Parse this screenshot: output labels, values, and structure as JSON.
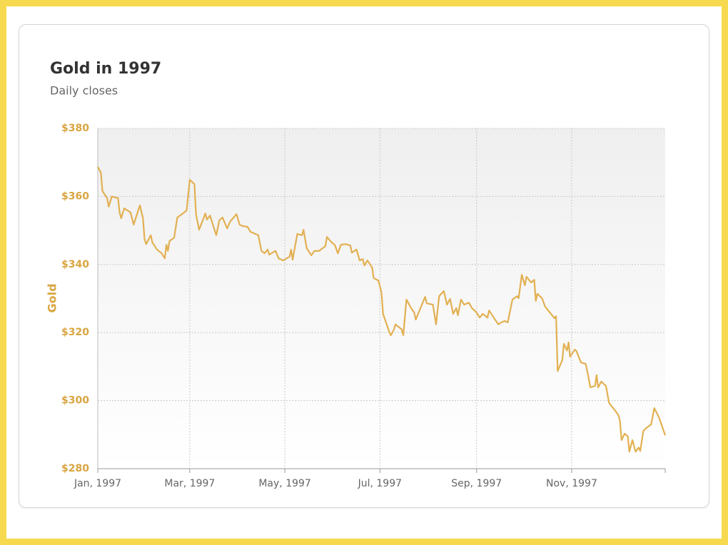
{
  "chart_data": {
    "type": "line",
    "title": "Gold in 1997",
    "subtitle": "Daily closes",
    "ylabel": "Gold",
    "x": [
      0,
      2,
      3,
      6,
      7,
      9,
      13,
      14,
      15,
      17,
      21,
      23,
      27,
      29,
      30,
      31,
      34,
      35,
      38,
      41,
      43,
      44,
      45,
      46,
      49,
      51,
      54,
      57,
      59,
      62,
      63,
      65,
      69,
      70,
      72,
      76,
      78,
      80,
      83,
      85,
      89,
      91,
      93,
      96,
      98,
      103,
      105,
      107,
      109,
      110,
      114,
      116,
      119,
      123,
      124,
      125,
      128,
      131,
      132,
      134,
      137,
      139,
      142,
      146,
      147,
      150,
      152,
      154,
      156,
      159,
      162,
      163,
      166,
      168,
      170,
      171,
      173,
      176,
      177,
      180,
      182,
      183,
      187,
      188,
      190,
      191,
      195,
      196,
      198,
      201,
      203,
      204,
      207,
      210,
      211,
      215,
      217,
      219,
      222,
      224,
      226,
      228,
      230,
      231,
      233,
      235,
      238,
      240,
      243,
      245,
      247,
      250,
      251,
      254,
      257,
      259,
      261,
      263,
      266,
      269,
      270,
      272,
      274,
      275,
      278,
      280,
      281,
      282,
      285,
      287,
      290,
      293,
      294,
      295,
      298,
      299,
      301,
      302,
      303,
      306,
      307,
      310,
      313,
      314,
      316,
      319,
      320,
      321,
      323,
      326,
      328,
      332,
      334,
      335,
      336,
      338,
      340,
      341,
      343,
      345,
      347,
      348,
      350,
      352,
      355,
      357,
      360,
      364
    ],
    "series": [
      {
        "name": "Gold",
        "color": "#e2b052",
        "values": [
          368.7,
          367,
          361.6,
          359.5,
          357,
          360,
          359.5,
          355.3,
          353.6,
          356.5,
          355.3,
          351.7,
          357.4,
          353.6,
          347.5,
          346,
          348.6,
          346.5,
          344.4,
          343.3,
          341.8,
          345.8,
          344,
          346.9,
          347.9,
          353.8,
          354.8,
          355.9,
          364.9,
          363.6,
          354.8,
          350.2,
          355,
          353.2,
          354.4,
          348.6,
          353,
          353.8,
          350.6,
          352.7,
          354.8,
          351.7,
          351.3,
          351.1,
          349.6,
          348.6,
          344,
          343.3,
          344.4,
          342.9,
          344,
          341.8,
          341.2,
          342.3,
          344.4,
          341.4,
          349,
          348.6,
          350.2,
          344.8,
          342.7,
          344,
          344,
          345.4,
          348.1,
          346.5,
          345.8,
          343.3,
          345.8,
          346,
          345.6,
          343.5,
          344.4,
          341.2,
          341.6,
          339.7,
          341.2,
          339.1,
          336,
          335.3,
          331.8,
          325.5,
          320.2,
          319.2,
          320.9,
          322.4,
          320.9,
          319.2,
          329.7,
          327.2,
          325.9,
          323.8,
          327.2,
          330.5,
          328.6,
          328.2,
          322.4,
          330.7,
          332.2,
          328.2,
          329.9,
          325.5,
          327.2,
          325.1,
          329.7,
          328.2,
          328.8,
          327.2,
          325.9,
          324.4,
          325.5,
          324.4,
          326.5,
          324.4,
          322.4,
          323,
          323.4,
          323,
          329.7,
          330.7,
          330.1,
          337,
          333.9,
          336.4,
          334.7,
          335.5,
          329.3,
          331.4,
          330.1,
          327.6,
          325.9,
          324.2,
          324.8,
          308.7,
          311.9,
          316.7,
          314.7,
          317.1,
          312.9,
          315,
          314.6,
          311.2,
          310.8,
          308.7,
          303.9,
          304.3,
          307.5,
          303.9,
          305.6,
          304.3,
          299.3,
          297,
          295.7,
          294,
          288.4,
          290.3,
          289.5,
          285,
          288.4,
          285,
          286.2,
          285.2,
          291.1,
          292,
          293,
          297.8,
          295.1,
          289.8
        ]
      }
    ],
    "xlim": [
      0,
      364
    ],
    "xticks": [
      {
        "value": 0,
        "label": "Jan, 1997"
      },
      {
        "value": 59,
        "label": "Mar, 1997"
      },
      {
        "value": 120,
        "label": "May, 1997"
      },
      {
        "value": 181,
        "label": "Jul, 1997"
      },
      {
        "value": 243,
        "label": "Sep, 1997"
      },
      {
        "value": 304,
        "label": "Nov, 1997"
      }
    ],
    "ylim": [
      280,
      380
    ],
    "yticks": [
      {
        "value": 280,
        "label": "$280"
      },
      {
        "value": 300,
        "label": "$300"
      },
      {
        "value": 320,
        "label": "$320"
      },
      {
        "value": 340,
        "label": "$340"
      },
      {
        "value": 360,
        "label": "$360"
      },
      {
        "value": 380,
        "label": "$380"
      }
    ],
    "grid": true
  }
}
